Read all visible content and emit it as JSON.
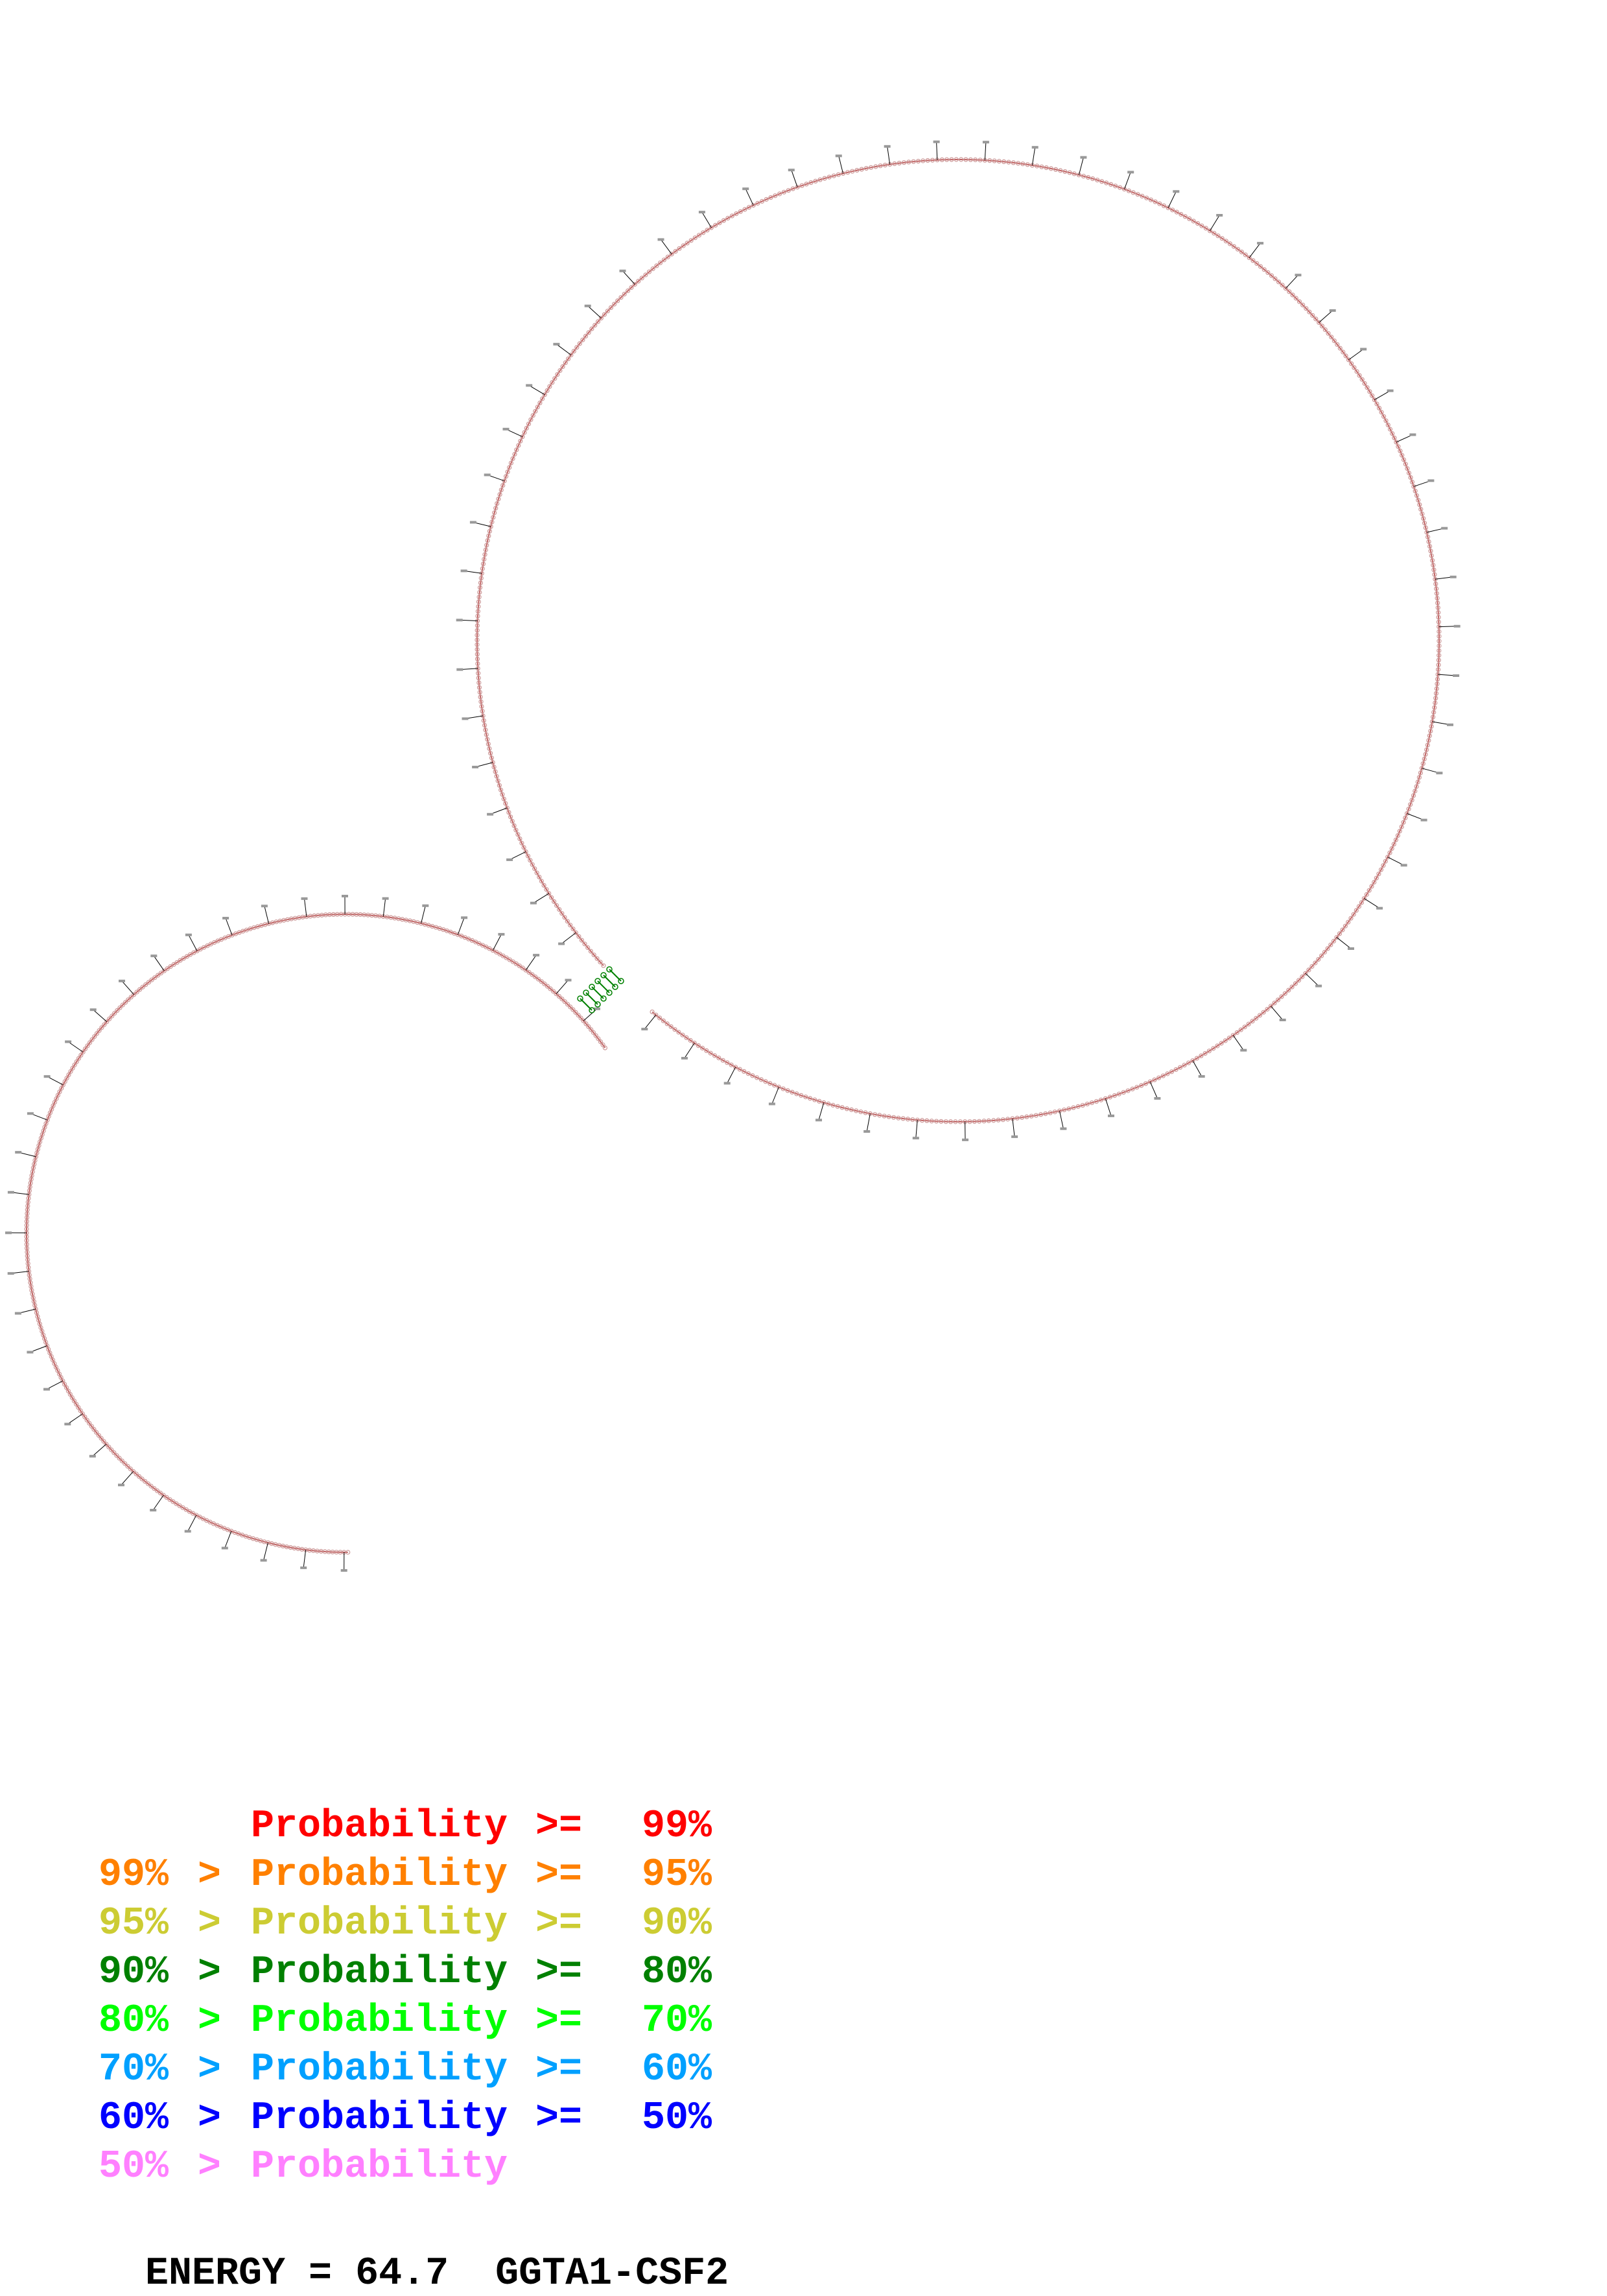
{
  "legend": [
    {
      "low": "",
      "prob": "Probability",
      "op": ">=",
      "high": "99%",
      "color": "#ff0000"
    },
    {
      "low": "99%",
      "prob": "Probability",
      "op": ">=",
      "high": "95%",
      "color": "#ff8000"
    },
    {
      "low": "95%",
      "prob": "Probability",
      "op": ">=",
      "high": "90%",
      "color": "#cccc33"
    },
    {
      "low": "90%",
      "prob": "Probability",
      "op": ">=",
      "high": "80%",
      "color": "#008000"
    },
    {
      "low": "80%",
      "prob": "Probability",
      "op": ">=",
      "high": "70%",
      "color": "#00ff00"
    },
    {
      "low": "70%",
      "prob": "Probability",
      "op": ">=",
      "high": "60%",
      "color": "#00a0ff"
    },
    {
      "low": "60%",
      "prob": "Probability",
      "op": ">=",
      "high": "50%",
      "color": "#0000ff"
    },
    {
      "low": "50%",
      "prob": "Probability",
      "op": "",
      "high": "",
      "color": "#ff80ff"
    }
  ],
  "energy": {
    "label": "ENERGY =",
    "value": "64.7",
    "name": "GGTA1-CSF2"
  },
  "colors": {
    "backbone": "#c06060",
    "nucleotide": "#cc9999",
    "stem": "#008000",
    "tick": "#000000"
  }
}
